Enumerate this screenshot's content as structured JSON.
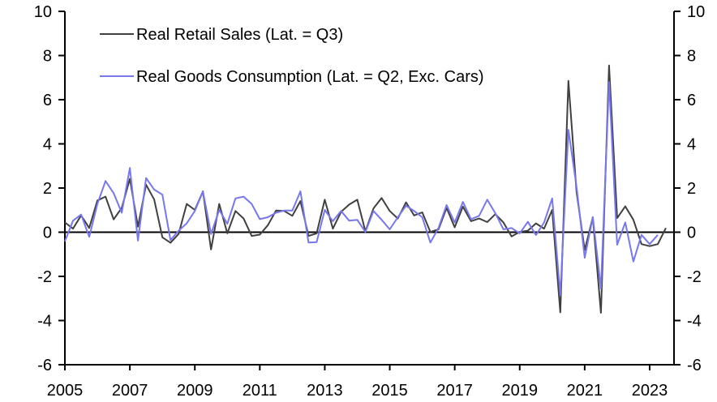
{
  "chart_data": {
    "type": "line",
    "title": "",
    "xlabel": "",
    "ylabel": "",
    "ylabel_right": "",
    "x_start": "2005Q1",
    "x_frequency": "quarterly",
    "xlim": [
      2005,
      2023.75
    ],
    "ylim": [
      -6,
      10
    ],
    "ylim_right": [
      -6,
      10
    ],
    "x_ticks": [
      2005,
      2007,
      2009,
      2011,
      2013,
      2015,
      2017,
      2019,
      2021,
      2023
    ],
    "x_tick_labels": [
      "2005",
      "2007",
      "2009",
      "2011",
      "2013",
      "2015",
      "2017",
      "2019",
      "2021",
      "2023"
    ],
    "y_ticks": [
      10,
      8,
      6,
      4,
      2,
      0,
      -2,
      -4,
      -6
    ],
    "y_tick_labels": [
      "10",
      "8",
      "6",
      "4",
      "2",
      "0",
      "-2",
      "-4",
      "-6"
    ],
    "y_tick_labels_right": [
      "10",
      "8",
      "6",
      "4",
      "2",
      "0",
      "-2",
      "-4",
      "-6"
    ],
    "grid": false,
    "zero_line": true,
    "legend_position": "top-left",
    "series": [
      {
        "name": "Real Retail Sales (Lat. = Q3)",
        "color": "#404040",
        "start": "2005Q1",
        "values": [
          0.44,
          0.16,
          0.76,
          0.19,
          1.44,
          1.61,
          0.58,
          1.1,
          2.42,
          0.25,
          2.15,
          1.48,
          -0.23,
          -0.48,
          -0.08,
          1.28,
          1.01,
          1.85,
          -0.78,
          1.28,
          -0.05,
          0.96,
          0.62,
          -0.17,
          -0.11,
          0.32,
          0.98,
          0.96,
          0.74,
          1.41,
          -0.17,
          -0.05,
          1.47,
          0.16,
          0.92,
          1.25,
          1.47,
          0.04,
          1.08,
          1.55,
          0.96,
          0.62,
          1.35,
          0.76,
          0.9,
          0.01,
          0.13,
          1.1,
          0.22,
          1.16,
          0.5,
          0.62,
          0.46,
          0.82,
          0.44,
          -0.19,
          0.01,
          0.07,
          0.4,
          0.16,
          1.01,
          -3.63,
          6.85,
          1.83,
          -0.81,
          0.68,
          -3.65,
          7.55,
          0.64,
          1.17,
          0.56,
          -0.54,
          -0.63,
          -0.54,
          0.19
        ]
      },
      {
        "name": "Real Goods Consumption (Lat. = Q2, Exc. Cars)",
        "color": "#7777ee",
        "start": "2005Q1",
        "values": [
          -0.41,
          0.52,
          0.8,
          -0.21,
          1.28,
          2.32,
          1.77,
          0.88,
          2.91,
          -0.38,
          2.45,
          1.93,
          1.7,
          -0.36,
          0.07,
          0.4,
          0.96,
          1.84,
          -0.08,
          1.01,
          0.38,
          1.53,
          1.61,
          1.28,
          0.59,
          0.68,
          0.88,
          0.98,
          0.98,
          1.85,
          -0.47,
          -0.45,
          1.01,
          0.5,
          0.96,
          0.52,
          0.56,
          0.01,
          0.96,
          0.56,
          0.13,
          0.68,
          1.2,
          0.96,
          0.68,
          -0.47,
          0.19,
          1.23,
          0.44,
          1.37,
          0.59,
          0.74,
          1.47,
          0.86,
          0.13,
          0.19,
          -0.05,
          0.47,
          -0.13,
          0.44,
          1.53,
          -2.85,
          4.64,
          2.07,
          -1.16,
          0.68,
          -2.55,
          6.8,
          -0.57,
          0.44,
          -1.33,
          -0.12,
          -0.54,
          -0.12
        ]
      }
    ]
  }
}
